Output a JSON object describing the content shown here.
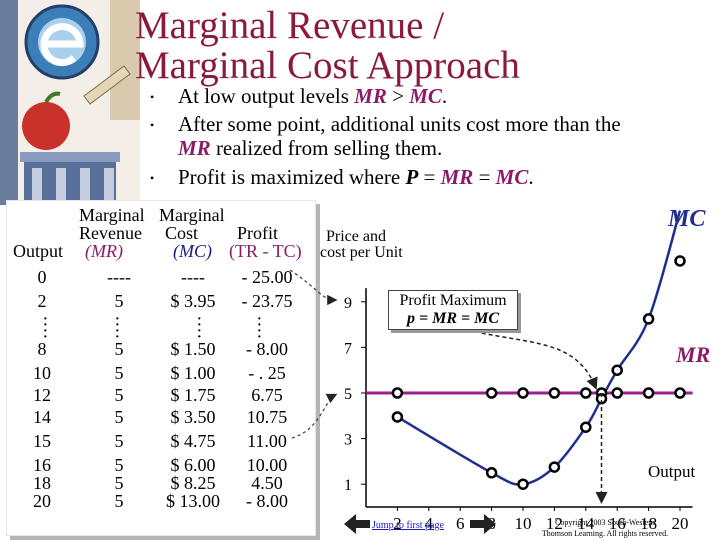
{
  "title_line1": "Marginal Revenue /",
  "title_line2": "Marginal Cost Approach",
  "bullets": {
    "b1_pre": "At low output levels ",
    "b1_mr": "MR",
    "b1_mid": " > ",
    "b1_mc": "MC",
    "b1_post": ".",
    "b2_line1": "After some point, additional units cost more than the",
    "b2_mr": "MR",
    "b2_post": " realized from selling them.",
    "b3_pre": "Profit is maximized where ",
    "b3_p": "P",
    "b3_eq1": " = ",
    "b3_mr": "MR",
    "b3_eq2": " = ",
    "b3_mc": "MC",
    "b3_post": "."
  },
  "table": {
    "header": {
      "output": "Output",
      "mr_line1": "Marginal",
      "mr_line2": "Revenue",
      "mr_abbr": "(MR)",
      "mc_line1": "Marginal",
      "mc_line2": "Cost",
      "mc_abbr": "(MC)",
      "profit_line1": "Profit",
      "profit_abbr": "(TR - TC)"
    },
    "rows": [
      {
        "output": "0",
        "mr": "----",
        "mc": "----",
        "profit": "- 25.00"
      },
      {
        "output": "2",
        "mr": "5",
        "mc": "$ 3.95",
        "profit": "- 23.75"
      },
      {
        "output": "8",
        "mr": "5",
        "mc": "$ 1.50",
        "profit": "- 8.00"
      },
      {
        "output": "10",
        "mr": "5",
        "mc": "$ 1.00",
        "profit": "- . 25"
      },
      {
        "output": "12",
        "mr": "5",
        "mc": "$ 1.75",
        "profit": "6.75"
      },
      {
        "output": "14",
        "mr": "5",
        "mc": "$ 3.50",
        "profit": "10.75"
      },
      {
        "output": "15",
        "mr": "5",
        "mc": "$ 4.75",
        "profit": "11.00"
      },
      {
        "output": "16",
        "mr": "5",
        "mc": "$ 6.00",
        "profit": "10.00"
      },
      {
        "output": "18",
        "mr": "5",
        "mc": "$ 8.25",
        "profit": "4.50"
      },
      {
        "output": "20",
        "mr": "5",
        "mc": "$ 13.00",
        "profit": "- 8.00"
      }
    ]
  },
  "chart_labels": {
    "ylabel_line1": "Price and",
    "ylabel_line2": "cost per Unit",
    "xlabel": "Output",
    "mc_curve": "MC",
    "mr_curve": "MR",
    "profit_max_title": "Profit Maximum",
    "profit_max_eq": "p = MR = MC"
  },
  "nav": {
    "jump": "Jump to first page",
    "copyright_line1": "Copyright 2003 South-Western",
    "copyright_line2": "Thomson Learning. All rights reserved."
  },
  "colors": {
    "title": "#8b1a3a",
    "mr_line": "#9b1f8f",
    "mc_curve": "#1f2f8f",
    "marker": "#000000"
  },
  "chart_data": {
    "type": "line",
    "xlabel": "Output",
    "ylabel": "Price and cost per Unit",
    "x_ticks": [
      2,
      4,
      6,
      8,
      10,
      12,
      14,
      16,
      18,
      20
    ],
    "y_ticks": [
      1,
      3,
      5,
      7,
      9
    ],
    "xlim": [
      0,
      21
    ],
    "ylim": [
      0,
      10
    ],
    "series": [
      {
        "name": "MR",
        "x": [
          2,
          8,
          10,
          12,
          14,
          15,
          16,
          18,
          20
        ],
        "y": [
          5,
          5,
          5,
          5,
          5,
          5,
          5,
          5,
          5
        ]
      },
      {
        "name": "MC",
        "x": [
          2,
          8,
          10,
          12,
          14,
          15,
          16,
          18,
          20
        ],
        "y": [
          3.95,
          1.5,
          1.0,
          1.75,
          3.5,
          4.75,
          6.0,
          8.25,
          13.0
        ]
      }
    ],
    "profit_maximum": {
      "x": 15,
      "y": 5
    }
  }
}
